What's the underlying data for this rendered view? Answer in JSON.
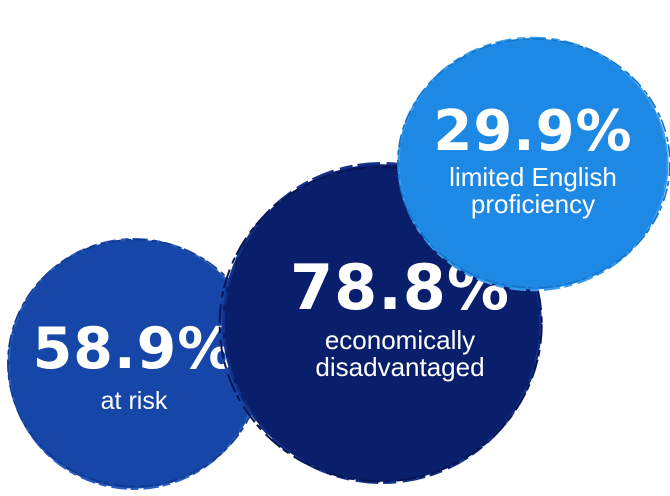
{
  "bubbles": {
    "lep": {
      "value": "29.9%",
      "label_line1": "limited English",
      "label_line2": "proficiency",
      "color": "#1e88e5"
    },
    "econ": {
      "value": "78.8%",
      "label_line1": "economically",
      "label_line2": "disadvantaged",
      "color": "#0a1f6b"
    },
    "risk": {
      "value": "58.9%",
      "label_line1": "at risk",
      "color": "#1646a8"
    }
  }
}
